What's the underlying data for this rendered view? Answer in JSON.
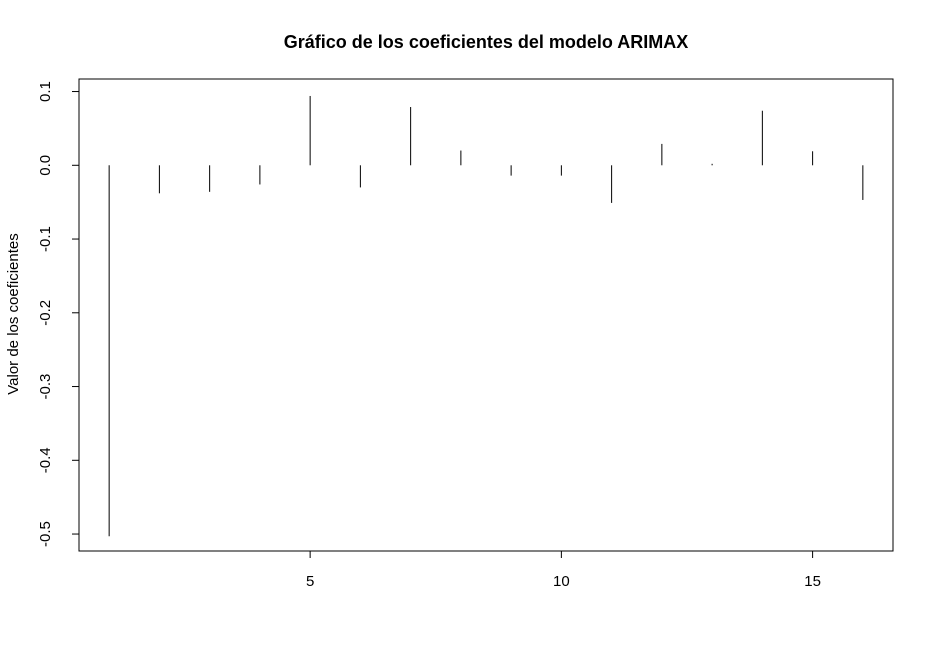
{
  "chart_data": {
    "type": "bar",
    "title": "Gráfico de los coeficientes del modelo ARIMAX",
    "xlabel": "",
    "ylabel": "Valor de los coeficientes",
    "x": [
      1,
      2,
      3,
      4,
      5,
      6,
      7,
      8,
      9,
      10,
      11,
      12,
      13,
      14,
      15,
      16
    ],
    "values": [
      -0.503,
      -0.038,
      -0.036,
      -0.026,
      0.094,
      -0.03,
      0.079,
      0.02,
      -0.014,
      -0.014,
      -0.051,
      0.029,
      0.002,
      0.074,
      0.019,
      -0.047
    ],
    "xlim": [
      0.4,
      16.6
    ],
    "ylim": [
      -0.523,
      0.117
    ],
    "xticks": [
      5,
      10,
      15
    ],
    "yticks": [
      -0.5,
      -0.4,
      -0.3,
      -0.2,
      -0.1,
      0.0,
      0.1
    ],
    "xtick_labels": [
      "5",
      "10",
      "15"
    ],
    "ytick_labels": [
      "-0.5",
      "-0.4",
      "-0.3",
      "-0.2",
      "-0.1",
      "0.0",
      "0.1"
    ],
    "grid": false,
    "legend": "none",
    "line_color": "#000000"
  }
}
